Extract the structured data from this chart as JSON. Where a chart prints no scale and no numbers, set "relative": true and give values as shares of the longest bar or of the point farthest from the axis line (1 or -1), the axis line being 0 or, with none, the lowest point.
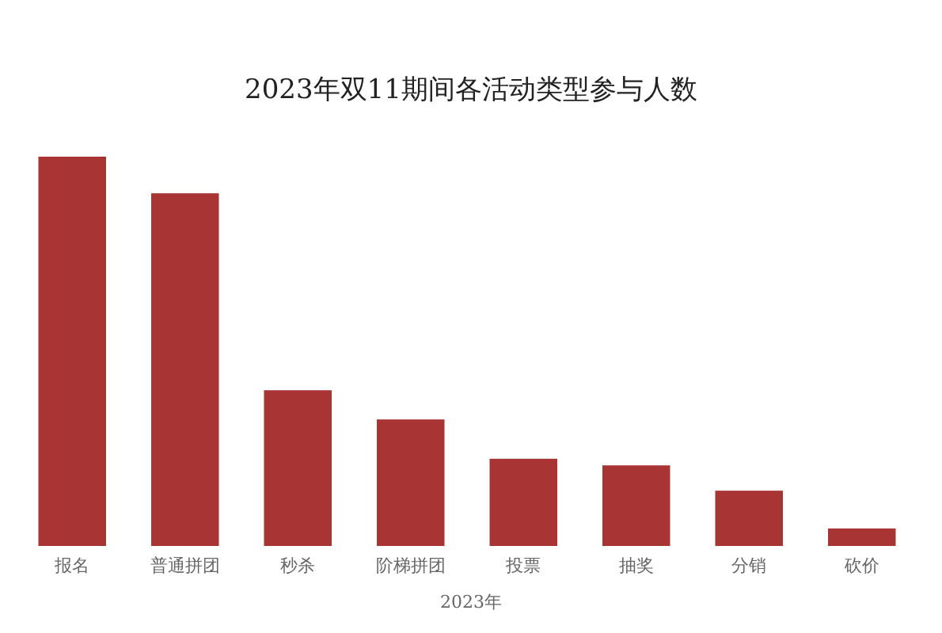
{
  "chart_data": {
    "type": "bar",
    "title": "2023年双11期间各活动类型参与人数",
    "xlabel": "2023年",
    "relative": true,
    "categories": [
      "报名",
      "普通拼团",
      "秒杀",
      "阶梯拼团",
      "投票",
      "抽奖",
      "分销",
      "砍价"
    ],
    "values": [
      1,
      0.906,
      0.4,
      0.325,
      0.224,
      0.207,
      0.142,
      0.045
    ],
    "color": "#a83434"
  }
}
